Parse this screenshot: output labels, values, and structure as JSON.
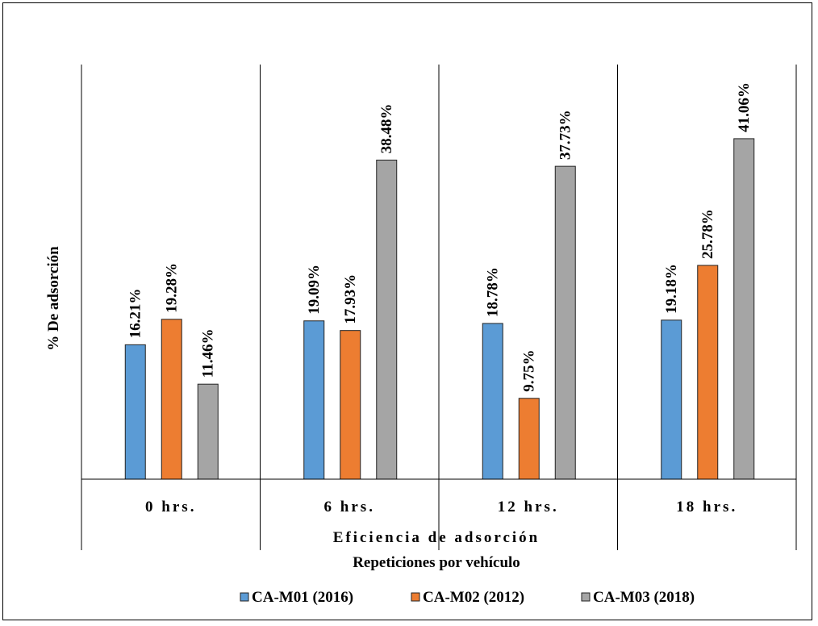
{
  "chart_data": {
    "type": "bar",
    "categories": [
      "0 hrs.",
      "6 hrs.",
      "12 hrs.",
      "18 hrs."
    ],
    "series": [
      {
        "name": "CA-M01 (2016)",
        "color": "#5b9bd5",
        "values": [
          16.21,
          19.09,
          18.78,
          19.18
        ],
        "labels": [
          "16.21%",
          "19.09%",
          "18.78%",
          "19.18%"
        ]
      },
      {
        "name": "CA-M02 (2012)",
        "color": "#ed7d31",
        "values": [
          19.28,
          17.93,
          9.75,
          25.78
        ],
        "labels": [
          "19.28%",
          "17.93%",
          "9.75%",
          "25.78%"
        ]
      },
      {
        "name": "CA-M03 (2018)",
        "color": "#a5a5a5",
        "values": [
          11.46,
          38.48,
          37.73,
          41.06
        ],
        "labels": [
          "11.46%",
          "38.48%",
          "37.73%",
          "41.06%"
        ]
      }
    ],
    "ylabel": "% De adsorción",
    "xlabel": "Eficiencia de adsorción",
    "xlabel2": "Repeticiones por vehículo",
    "ylim": [
      0,
      50
    ],
    "legend_position": "bottom",
    "grid": false
  }
}
